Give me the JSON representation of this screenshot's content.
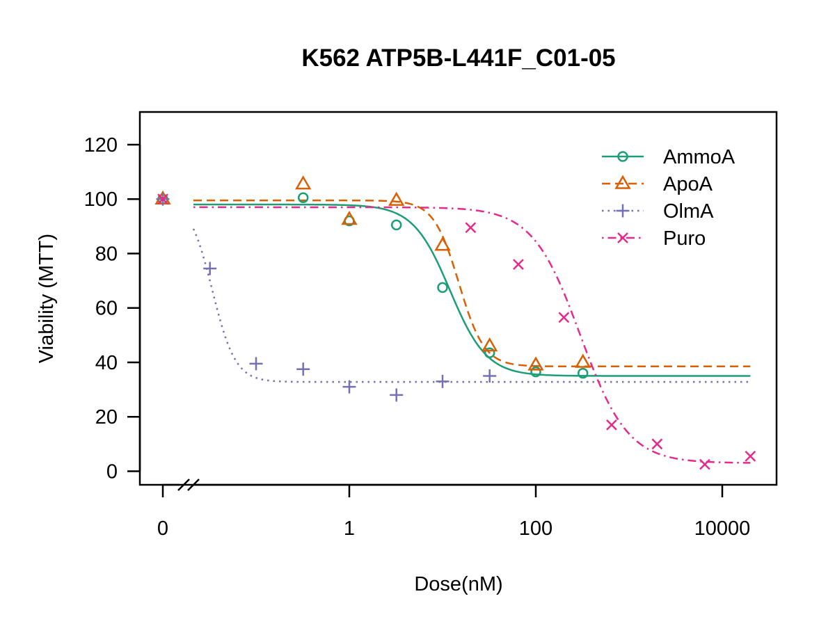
{
  "chart_data": {
    "type": "scatter",
    "title": "K562 ATP5B-L441F_C01-05",
    "xlabel": "Dose(nM)",
    "ylabel": "Viability (MTT)",
    "x_scale": "log10",
    "x_ticks": [
      {
        "value": 0,
        "label": "0"
      },
      {
        "value": 1,
        "label": "1"
      },
      {
        "value": 100,
        "label": "100"
      },
      {
        "value": 10000,
        "label": "10000"
      }
    ],
    "y_ticks": [
      0,
      20,
      40,
      60,
      80,
      100,
      120
    ],
    "ylim": [
      -5,
      132
    ],
    "legend_position": "top-right",
    "series": [
      {
        "name": "AmmoA",
        "color": "#1b9e77",
        "marker": "circle",
        "line_style": "solid",
        "points": [
          [
            0,
            100
          ],
          [
            0.32,
            100.5
          ],
          [
            1,
            92
          ],
          [
            3.2,
            90.5
          ],
          [
            10,
            67.5
          ],
          [
            32,
            43.5
          ],
          [
            100,
            36.5
          ],
          [
            320,
            36
          ]
        ],
        "fit": {
          "top": 98,
          "bottom": 35,
          "ec50": 12,
          "hill": 2.2
        }
      },
      {
        "name": "ApoA",
        "color": "#d95f02",
        "marker": "triangle",
        "line_style": "dashed",
        "points": [
          [
            0,
            100
          ],
          [
            0.32,
            105.5
          ],
          [
            1,
            92.5
          ],
          [
            3.2,
            99.5
          ],
          [
            10,
            83
          ],
          [
            32,
            46
          ],
          [
            100,
            39
          ],
          [
            320,
            40
          ]
        ],
        "fit": {
          "top": 99.5,
          "bottom": 38.5,
          "ec50": 15,
          "hill": 3.2
        }
      },
      {
        "name": "OlmA",
        "color": "#7570b3",
        "marker": "plus",
        "line_style": "dotted",
        "points": [
          [
            0,
            100
          ],
          [
            0.032,
            74.5
          ],
          [
            0.1,
            39.5
          ],
          [
            0.32,
            37.5
          ],
          [
            1,
            31
          ],
          [
            3.2,
            28
          ],
          [
            10,
            33
          ],
          [
            32,
            35
          ]
        ],
        "fit": {
          "top": 100,
          "bottom": 32.8,
          "ec50": 0.034,
          "hill": 3.5
        }
      },
      {
        "name": "Puro",
        "color": "#e7298a",
        "marker": "x",
        "line_style": "dotdash",
        "points": [
          [
            0,
            100
          ],
          [
            20,
            89.5
          ],
          [
            65,
            76
          ],
          [
            200,
            56.5
          ],
          [
            650,
            17
          ],
          [
            2000,
            10
          ],
          [
            6500,
            2.5
          ],
          [
            20000,
            5.5
          ]
        ],
        "fit": {
          "top": 97,
          "bottom": 3,
          "ec50": 300,
          "hill": 1.7
        }
      }
    ]
  }
}
